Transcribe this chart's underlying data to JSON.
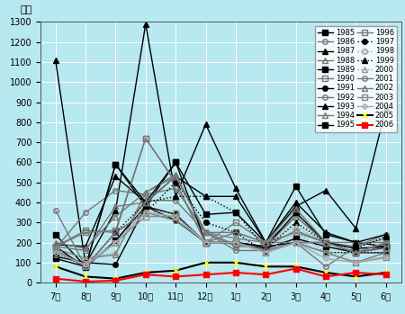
{
  "months": [
    "7月",
    "8月",
    "9月",
    "10月",
    "11月",
    "12月",
    "1月",
    "2月",
    "3月",
    "4月",
    "5月",
    "6月"
  ],
  "ylabel": "尾数",
  "ylim": [
    0,
    1300
  ],
  "yticks": [
    0,
    100,
    200,
    300,
    400,
    500,
    600,
    700,
    800,
    900,
    1000,
    1100,
    1200,
    1300
  ],
  "bg_color": "#b8e8f0",
  "series": {
    "1985": [
      240,
      80,
      590,
      380,
      600,
      340,
      350,
      200,
      480,
      240,
      200,
      180
    ],
    "1986": [
      160,
      90,
      200,
      410,
      410,
      250,
      160,
      160,
      200,
      80,
      180,
      240
    ],
    "1987": [
      1110,
      90,
      360,
      1290,
      430,
      790,
      470,
      200,
      380,
      460,
      270,
      870
    ],
    "1988": [
      170,
      120,
      140,
      450,
      540,
      250,
      180,
      180,
      330,
      200,
      180,
      220
    ],
    "1989": [
      180,
      75,
      210,
      380,
      340,
      200,
      200,
      170,
      220,
      180,
      150,
      175
    ],
    "1990": [
      180,
      260,
      250,
      720,
      500,
      200,
      250,
      200,
      330,
      200,
      150,
      200
    ],
    "1991": [
      130,
      100,
      90,
      380,
      310,
      200,
      200,
      180,
      200,
      200,
      150,
      150
    ],
    "1992": [
      170,
      350,
      460,
      440,
      470,
      250,
      220,
      200,
      200,
      200,
      200,
      200
    ],
    "1993": [
      190,
      180,
      530,
      400,
      530,
      430,
      430,
      200,
      400,
      250,
      200,
      240
    ],
    "1994": [
      200,
      170,
      330,
      450,
      530,
      250,
      190,
      180,
      260,
      200,
      150,
      180
    ],
    "1995": [
      120,
      80,
      590,
      400,
      600,
      200,
      200,
      180,
      350,
      200,
      170,
      180
    ],
    "1996": [
      180,
      250,
      260,
      720,
      500,
      200,
      300,
      200,
      250,
      200,
      150,
      150
    ],
    "1997": [
      160,
      80,
      250,
      350,
      500,
      300,
      250,
      150,
      200,
      150,
      150,
      150
    ],
    "1998": [
      140,
      90,
      200,
      350,
      350,
      200,
      200,
      150,
      250,
      150,
      150,
      170
    ],
    "1999": [
      150,
      80,
      250,
      400,
      430,
      430,
      350,
      170,
      300,
      200,
      170,
      230
    ],
    "2000": [
      170,
      120,
      150,
      400,
      530,
      250,
      220,
      200,
      280,
      200,
      150,
      200
    ],
    "2001": [
      360,
      80,
      250,
      350,
      310,
      200,
      200,
      160,
      200,
      150,
      100,
      150
    ],
    "2002": [
      180,
      160,
      380,
      400,
      530,
      250,
      250,
      200,
      370,
      200,
      150,
      200
    ],
    "2003": [
      160,
      80,
      200,
      330,
      330,
      200,
      200,
      150,
      200,
      150,
      100,
      125
    ],
    "2004": [
      150,
      90,
      200,
      350,
      330,
      200,
      200,
      150,
      200,
      120,
      100,
      130
    ],
    "2005": [
      80,
      30,
      20,
      50,
      60,
      100,
      100,
      80,
      80,
      50,
      30,
      50
    ],
    "2006": [
      20,
      5,
      10,
      40,
      30,
      40,
      50,
      40,
      70,
      30,
      50,
      40
    ]
  },
  "styles": {
    "1985": {
      "color": "#000000",
      "marker": "s",
      "ls": "-",
      "mfc": "#000000",
      "mec": "#000000",
      "ms": 4,
      "lw": 1.0
    },
    "1986": {
      "color": "#777777",
      "marker": "o",
      "ls": "-",
      "mfc": "none",
      "mec": "#777777",
      "ms": 4,
      "lw": 1.0
    },
    "1987": {
      "color": "#000000",
      "marker": "^",
      "ls": "-",
      "mfc": "#000000",
      "mec": "#000000",
      "ms": 4,
      "lw": 1.0
    },
    "1988": {
      "color": "#777777",
      "marker": "^",
      "ls": "-",
      "mfc": "none",
      "mec": "#777777",
      "ms": 4,
      "lw": 1.0
    },
    "1989": {
      "color": "#000000",
      "marker": "s",
      "ls": "-",
      "mfc": "#000000",
      "mec": "#000000",
      "ms": 4,
      "lw": 1.0
    },
    "1990": {
      "color": "#777777",
      "marker": "s",
      "ls": "-",
      "mfc": "none",
      "mec": "#777777",
      "ms": 4,
      "lw": 1.0
    },
    "1991": {
      "color": "#000000",
      "marker": "o",
      "ls": "-",
      "mfc": "#000000",
      "mec": "#000000",
      "ms": 4,
      "lw": 1.0
    },
    "1992": {
      "color": "#777777",
      "marker": "o",
      "ls": "-",
      "mfc": "none",
      "mec": "#777777",
      "ms": 4,
      "lw": 1.0
    },
    "1993": {
      "color": "#000000",
      "marker": "^",
      "ls": "-",
      "mfc": "#000000",
      "mec": "#000000",
      "ms": 4,
      "lw": 1.0
    },
    "1994": {
      "color": "#777777",
      "marker": "^",
      "ls": "-",
      "mfc": "none",
      "mec": "#777777",
      "ms": 4,
      "lw": 1.0
    },
    "1995": {
      "color": "#000000",
      "marker": "s",
      "ls": "-",
      "mfc": "#000000",
      "mec": "#000000",
      "ms": 4,
      "lw": 1.0
    },
    "1996": {
      "color": "#777777",
      "marker": "s",
      "ls": "-",
      "mfc": "none",
      "mec": "#777777",
      "ms": 4,
      "lw": 1.0
    },
    "1997": {
      "color": "#000000",
      "marker": "o",
      "ls": ":",
      "mfc": "#000000",
      "mec": "#000000",
      "ms": 4,
      "lw": 1.0
    },
    "1998": {
      "color": "#999999",
      "marker": "o",
      "ls": ":",
      "mfc": "none",
      "mec": "#999999",
      "ms": 4,
      "lw": 1.0
    },
    "1999": {
      "color": "#000000",
      "marker": "^",
      "ls": ":",
      "mfc": "#000000",
      "mec": "#000000",
      "ms": 4,
      "lw": 1.0
    },
    "2000": {
      "color": "#999999",
      "marker": "^",
      "ls": ":",
      "mfc": "none",
      "mec": "#999999",
      "ms": 4,
      "lw": 1.0
    },
    "2001": {
      "color": "#777777",
      "marker": "o",
      "ls": "-",
      "mfc": "none",
      "mec": "#777777",
      "ms": 4,
      "lw": 1.0
    },
    "2002": {
      "color": "#777777",
      "marker": "^",
      "ls": "-",
      "mfc": "none",
      "mec": "#777777",
      "ms": 4,
      "lw": 1.0
    },
    "2003": {
      "color": "#888888",
      "marker": "s",
      "ls": "-",
      "mfc": "none",
      "mec": "#888888",
      "ms": 4,
      "lw": 1.0
    },
    "2004": {
      "color": "#aaaaaa",
      "marker": "D",
      "ls": "-",
      "mfc": "none",
      "mec": "#aaaaaa",
      "ms": 3,
      "lw": 1.0
    },
    "2005": {
      "color": "#000000",
      "marker": "x",
      "ls": "-",
      "mfc": "#ffff00",
      "mec": "#ffff00",
      "ms": 5,
      "lw": 1.5
    },
    "2006": {
      "color": "#ff0000",
      "marker": "s",
      "ls": "-",
      "mfc": "#ff0000",
      "mec": "#ff0000",
      "ms": 4,
      "lw": 1.5
    }
  },
  "legend_left": [
    "1985",
    "1987",
    "1989",
    "1991",
    "1993",
    "1995",
    "1997",
    "1999",
    "2001",
    "2003",
    "2005"
  ],
  "legend_right": [
    "1986",
    "1988",
    "1990",
    "1992",
    "1994",
    "1996",
    "1998",
    "2000",
    "2002",
    "2004",
    "2006"
  ]
}
